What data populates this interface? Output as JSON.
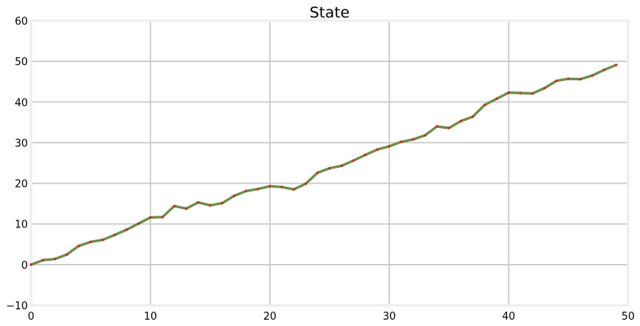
{
  "chart_data": {
    "type": "line",
    "title": "State",
    "xlabel": "",
    "ylabel": "",
    "xlim": [
      0,
      50
    ],
    "ylim": [
      -10,
      60
    ],
    "xticks": [
      0,
      10,
      20,
      30,
      40,
      50
    ],
    "yticks": [
      -10,
      0,
      10,
      20,
      30,
      40,
      50,
      60
    ],
    "grid": true,
    "colors": {
      "line": "#6b8e47",
      "markers": "#d62728",
      "grid": "#c8c8c8",
      "axes_frame": "#eeeeee"
    },
    "series": [
      {
        "x": [
          0,
          1,
          2,
          3,
          4,
          5,
          6,
          7,
          8,
          9,
          10,
          11,
          12,
          13,
          14,
          15,
          16,
          17,
          18,
          19,
          20,
          21,
          22,
          23,
          24,
          25,
          26,
          27,
          28,
          29,
          30,
          31,
          32,
          33,
          34,
          35,
          36,
          37,
          38,
          39,
          40,
          41,
          42,
          43,
          44,
          45,
          46,
          47,
          48,
          49
        ],
        "values": [
          0.0,
          1.1,
          1.4,
          2.5,
          4.6,
          5.6,
          6.1,
          7.3,
          8.6,
          10.1,
          11.6,
          11.7,
          14.4,
          13.8,
          15.3,
          14.6,
          15.1,
          16.9,
          18.1,
          18.6,
          19.3,
          19.1,
          18.5,
          19.9,
          22.6,
          23.7,
          24.3,
          25.6,
          27.0,
          28.3,
          29.1,
          30.2,
          30.8,
          31.8,
          34.0,
          33.6,
          35.3,
          36.4,
          39.3,
          40.8,
          42.3,
          42.2,
          42.1,
          43.4,
          45.2,
          45.7,
          45.6,
          46.5,
          47.9,
          49.1
        ]
      }
    ]
  }
}
